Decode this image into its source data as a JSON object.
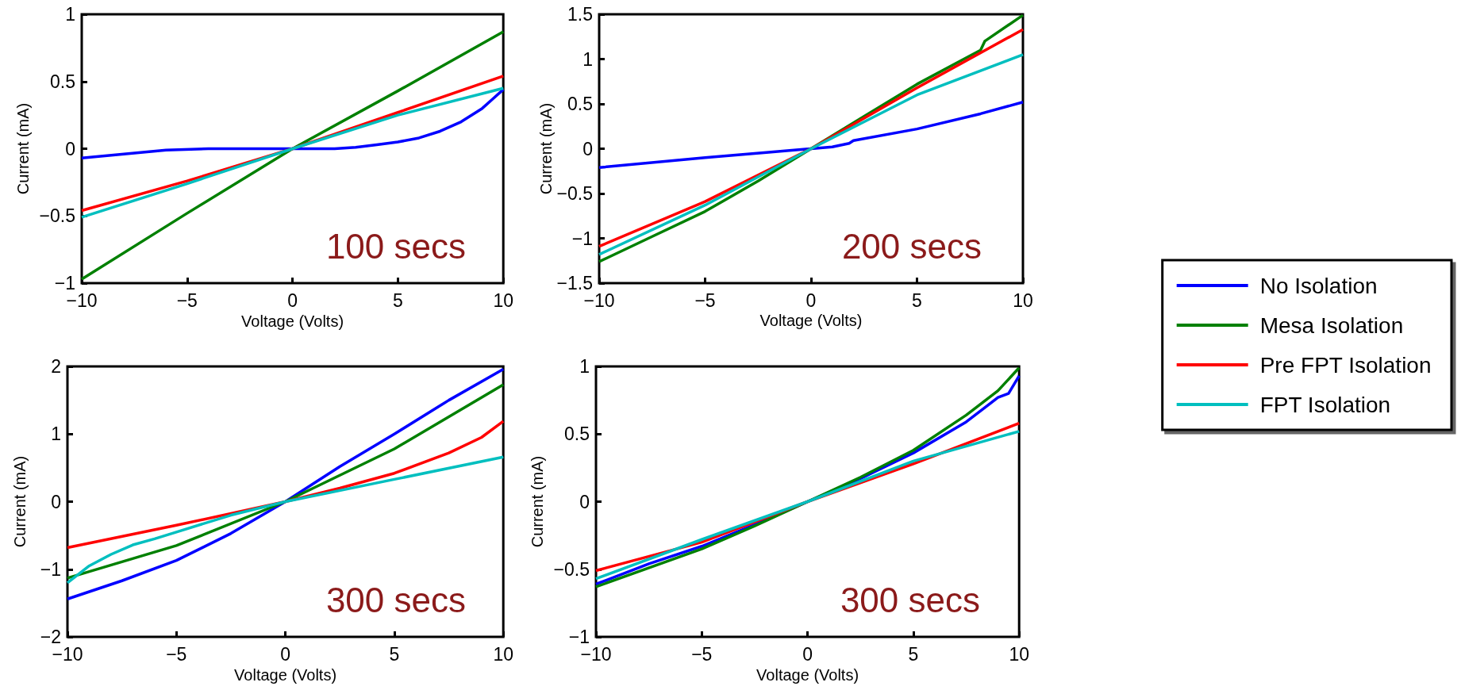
{
  "chart_data": [
    {
      "type": "line",
      "xlabel": "Voltage (Volts)",
      "ylabel": "Current (mA)",
      "annotations": [
        "100 secs"
      ],
      "xlim": [
        -10,
        10
      ],
      "xticks": [
        -10,
        -5,
        0,
        5,
        10
      ],
      "ylim": [
        -1,
        1
      ],
      "yticks": [
        -1,
        -0.5,
        0,
        0.5,
        1
      ],
      "grid": false,
      "legend": false,
      "marker": "none",
      "line_style": "solid",
      "series": [
        {
          "color": "#0000ff",
          "x": [
            -10,
            -8,
            -6,
            -4,
            -2,
            0,
            2,
            3,
            4,
            5,
            6,
            7,
            8,
            9,
            9.5,
            10
          ],
          "values": [
            -0.07,
            -0.04,
            -0.01,
            0,
            0,
            0,
            0,
            0.01,
            0.03,
            0.05,
            0.08,
            0.13,
            0.2,
            0.3,
            0.37,
            0.44
          ]
        },
        {
          "color": "#008000",
          "x": [
            -10,
            -5,
            0,
            5,
            10
          ],
          "values": [
            -0.97,
            -0.48,
            0,
            0.43,
            0.87
          ]
        },
        {
          "color": "#ff0000",
          "x": [
            -10,
            -5,
            0,
            5,
            10
          ],
          "values": [
            -0.46,
            -0.24,
            0,
            0.27,
            0.54
          ]
        },
        {
          "color": "#00bfbf",
          "x": [
            -10,
            -5,
            0,
            5,
            10
          ],
          "values": [
            -0.51,
            -0.26,
            0,
            0.25,
            0.45
          ]
        }
      ]
    },
    {
      "type": "line",
      "xlabel": "Voltage (Volts)",
      "ylabel": "Current (mA)",
      "annotations": [
        "200 secs"
      ],
      "xlim": [
        -10,
        10
      ],
      "xticks": [
        -10,
        -5,
        0,
        5,
        10
      ],
      "ylim": [
        -1.5,
        1.5
      ],
      "yticks": [
        -1.5,
        -1,
        -0.5,
        0,
        0.5,
        1,
        1.5
      ],
      "grid": false,
      "legend": "right",
      "marker": "none",
      "line_style": "solid",
      "series": [
        {
          "name": "No Isolation",
          "color": "#0000ff",
          "x": [
            -10,
            -5,
            -2,
            0,
            1,
            1.8,
            2,
            5,
            8,
            10
          ],
          "values": [
            -0.21,
            -0.1,
            -0.04,
            0,
            0.02,
            0.06,
            0.09,
            0.22,
            0.39,
            0.52
          ]
        },
        {
          "name": "Mesa Isolation",
          "color": "#008000",
          "x": [
            -10,
            -7.5,
            -5,
            -2.5,
            0,
            2.5,
            5,
            8,
            8.2,
            10
          ],
          "values": [
            -1.26,
            -0.98,
            -0.7,
            -0.36,
            0,
            0.36,
            0.72,
            1.1,
            1.2,
            1.49
          ]
        },
        {
          "name": "Pre FPT Isolation",
          "color": "#ff0000",
          "x": [
            -10,
            -5,
            0,
            5,
            10
          ],
          "values": [
            -1.09,
            -0.59,
            0,
            0.68,
            1.33
          ]
        },
        {
          "name": "FPT Isolation",
          "color": "#00bfbf",
          "x": [
            -10,
            -5,
            0,
            5,
            10
          ],
          "values": [
            -1.18,
            -0.63,
            0,
            0.6,
            1.05
          ]
        }
      ]
    },
    {
      "type": "line",
      "xlabel": "Voltage (Volts)",
      "ylabel": "Current (mA)",
      "annotations": [
        "300 secs"
      ],
      "xlim": [
        -10,
        10
      ],
      "xticks": [
        -10,
        -5,
        0,
        5,
        10
      ],
      "ylim": [
        -2,
        2
      ],
      "yticks": [
        -2,
        -1,
        0,
        1,
        2
      ],
      "grid": false,
      "legend": false,
      "marker": "none",
      "line_style": "solid",
      "series": [
        {
          "color": "#0000ff",
          "x": [
            -10,
            -7.5,
            -5,
            -2.5,
            0,
            2.5,
            5,
            7.5,
            10
          ],
          "values": [
            -1.44,
            -1.17,
            -0.87,
            -0.47,
            0,
            0.52,
            1.0,
            1.5,
            1.96
          ]
        },
        {
          "color": "#008000",
          "x": [
            -10,
            -5,
            0,
            5,
            10
          ],
          "values": [
            -1.13,
            -0.65,
            0,
            0.78,
            1.73
          ]
        },
        {
          "color": "#ff0000",
          "x": [
            -10,
            -5,
            0,
            2.5,
            5,
            7.5,
            9,
            10
          ],
          "values": [
            -0.68,
            -0.35,
            0,
            0.2,
            0.42,
            0.72,
            0.95,
            1.19
          ]
        },
        {
          "color": "#00bfbf",
          "x": [
            -10,
            -9,
            -8,
            -7,
            -6,
            -5,
            -2.5,
            0,
            5,
            10
          ],
          "values": [
            -1.2,
            -0.95,
            -0.78,
            -0.64,
            -0.55,
            -0.45,
            -0.2,
            0,
            0.33,
            0.66
          ]
        }
      ]
    },
    {
      "type": "line",
      "xlabel": "Voltage (Volts)",
      "ylabel": "Current (mA)",
      "annotations": [
        "300 secs"
      ],
      "xlim": [
        -10,
        10
      ],
      "xticks": [
        -10,
        -5,
        0,
        5,
        10
      ],
      "ylim": [
        -1,
        1
      ],
      "yticks": [
        -1,
        -0.5,
        0,
        0.5,
        1
      ],
      "grid": false,
      "legend": false,
      "marker": "none",
      "line_style": "solid",
      "series": [
        {
          "color": "#0000ff",
          "x": [
            -10,
            -7.5,
            -5,
            -2.5,
            0,
            2.5,
            5,
            7.5,
            9,
            9.5,
            10
          ],
          "values": [
            -0.61,
            -0.46,
            -0.33,
            -0.17,
            0,
            0.17,
            0.36,
            0.59,
            0.77,
            0.8,
            0.93
          ]
        },
        {
          "color": "#008000",
          "x": [
            -10,
            -5,
            -2.5,
            0,
            2.5,
            5,
            7.5,
            9,
            10
          ],
          "values": [
            -0.63,
            -0.35,
            -0.18,
            0,
            0.18,
            0.38,
            0.64,
            0.82,
            0.99
          ]
        },
        {
          "color": "#ff0000",
          "x": [
            -10,
            -5,
            0,
            5,
            10
          ],
          "values": [
            -0.51,
            -0.3,
            0,
            0.28,
            0.58
          ]
        },
        {
          "color": "#00bfbf",
          "x": [
            -10,
            -5,
            0,
            5,
            10
          ],
          "values": [
            -0.57,
            -0.28,
            0,
            0.3,
            0.52
          ]
        }
      ]
    }
  ]
}
